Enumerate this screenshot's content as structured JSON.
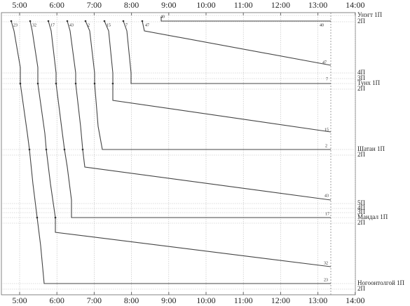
{
  "time_axis": {
    "labels": [
      "5:00",
      "6:00",
      "7:00",
      "8:00",
      "9:00",
      "10:00",
      "11:00",
      "12:00",
      "13:00",
      "14:00"
    ]
  },
  "tracks": [
    "Унэгт 1П",
    "2П",
    "4П",
    "3П",
    "Тунх 1П",
    "2П",
    "Шатан 1П",
    "2П",
    "5П",
    "4П",
    "3П",
    "Мандал 1П",
    "2П",
    "Ногоонтолгой 1П",
    "2П"
  ],
  "trains": [
    "23",
    "32",
    "17",
    "43",
    "2",
    "15",
    "7",
    "47",
    "40"
  ]
}
